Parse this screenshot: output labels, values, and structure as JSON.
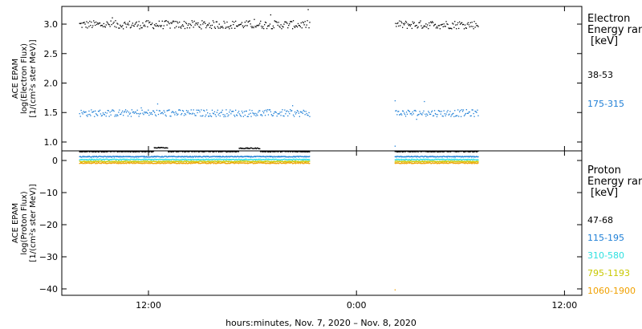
{
  "chart_data": [
    {
      "type": "scatter",
      "panel": "electron",
      "ylabel_lines": [
        "ACE EPAM",
        "log(Electron Flux)",
        "[1/(cm²s ster MeV)]"
      ],
      "ylim": [
        0.85,
        3.3
      ],
      "y_ticks": [
        1.0,
        1.5,
        2.0,
        2.5,
        3.0
      ],
      "y_tick_labels": [
        "1.0",
        "1.5",
        "2.0",
        "2.5",
        "3.0"
      ],
      "legend_title_lines": [
        "Electron",
        "Energy ran"
      ],
      "legend_unit": "[keV]",
      "gap_hours": [
        21.3,
        26.2
      ],
      "x_range_hours": [
        7.0,
        37.0
      ],
      "data_end_hours": 31.0,
      "series": [
        {
          "name": "38-53",
          "color": "#000000",
          "level": 2.99,
          "jitter": 0.07
        },
        {
          "name": "175-315",
          "color": "#1e7fd6",
          "level": 1.49,
          "jitter": 0.06
        }
      ],
      "annotations": [
        {
          "x_hours": 26.2,
          "y": 1.7,
          "color": "#1e7fd6"
        },
        {
          "x_hours": 26.2,
          "y": 0.93,
          "color": "#1e7fd6"
        }
      ]
    },
    {
      "type": "scatter",
      "panel": "proton",
      "ylabel_lines": [
        "ACE EPAM",
        "log(Proton Flux)",
        "[1/(cm²s ster MeV)]"
      ],
      "ylim": [
        -42,
        3
      ],
      "y_ticks": [
        0,
        -10,
        -20,
        -30,
        -40
      ],
      "y_tick_labels": [
        "0",
        "−10",
        "−20",
        "−30",
        "−40"
      ],
      "legend_title_lines": [
        "Proton",
        "Energy ran"
      ],
      "legend_unit": "[keV]",
      "gap_hours": [
        21.3,
        26.2
      ],
      "x_range_hours": [
        7.0,
        37.0
      ],
      "data_end_hours": 31.0,
      "series": [
        {
          "name": "47-68",
          "color": "#000000",
          "level": 2.8,
          "jitter": 0.15
        },
        {
          "name": "115-195",
          "color": "#1e7fd6",
          "level": 1.2,
          "jitter": 0.15
        },
        {
          "name": "310-580",
          "color": "#2ee0e0",
          "level": 0.3,
          "jitter": 0.15
        },
        {
          "name": "795-1193",
          "color": "#c8c800",
          "level": -0.3,
          "jitter": 0.15
        },
        {
          "name": "1060-1900",
          "color": "#f0a000",
          "level": -0.8,
          "jitter": 0.15
        }
      ],
      "annotations": [
        {
          "x_hours": 26.2,
          "y": -40.3,
          "color": "#f0a000"
        }
      ]
    }
  ],
  "x_axis": {
    "tick_hours": [
      12,
      24,
      36
    ],
    "tick_labels": [
      "12:00",
      "0:00",
      "12:00"
    ],
    "title": "hours:minutes, Nov.  7, 2020 – Nov.  8, 2020"
  }
}
